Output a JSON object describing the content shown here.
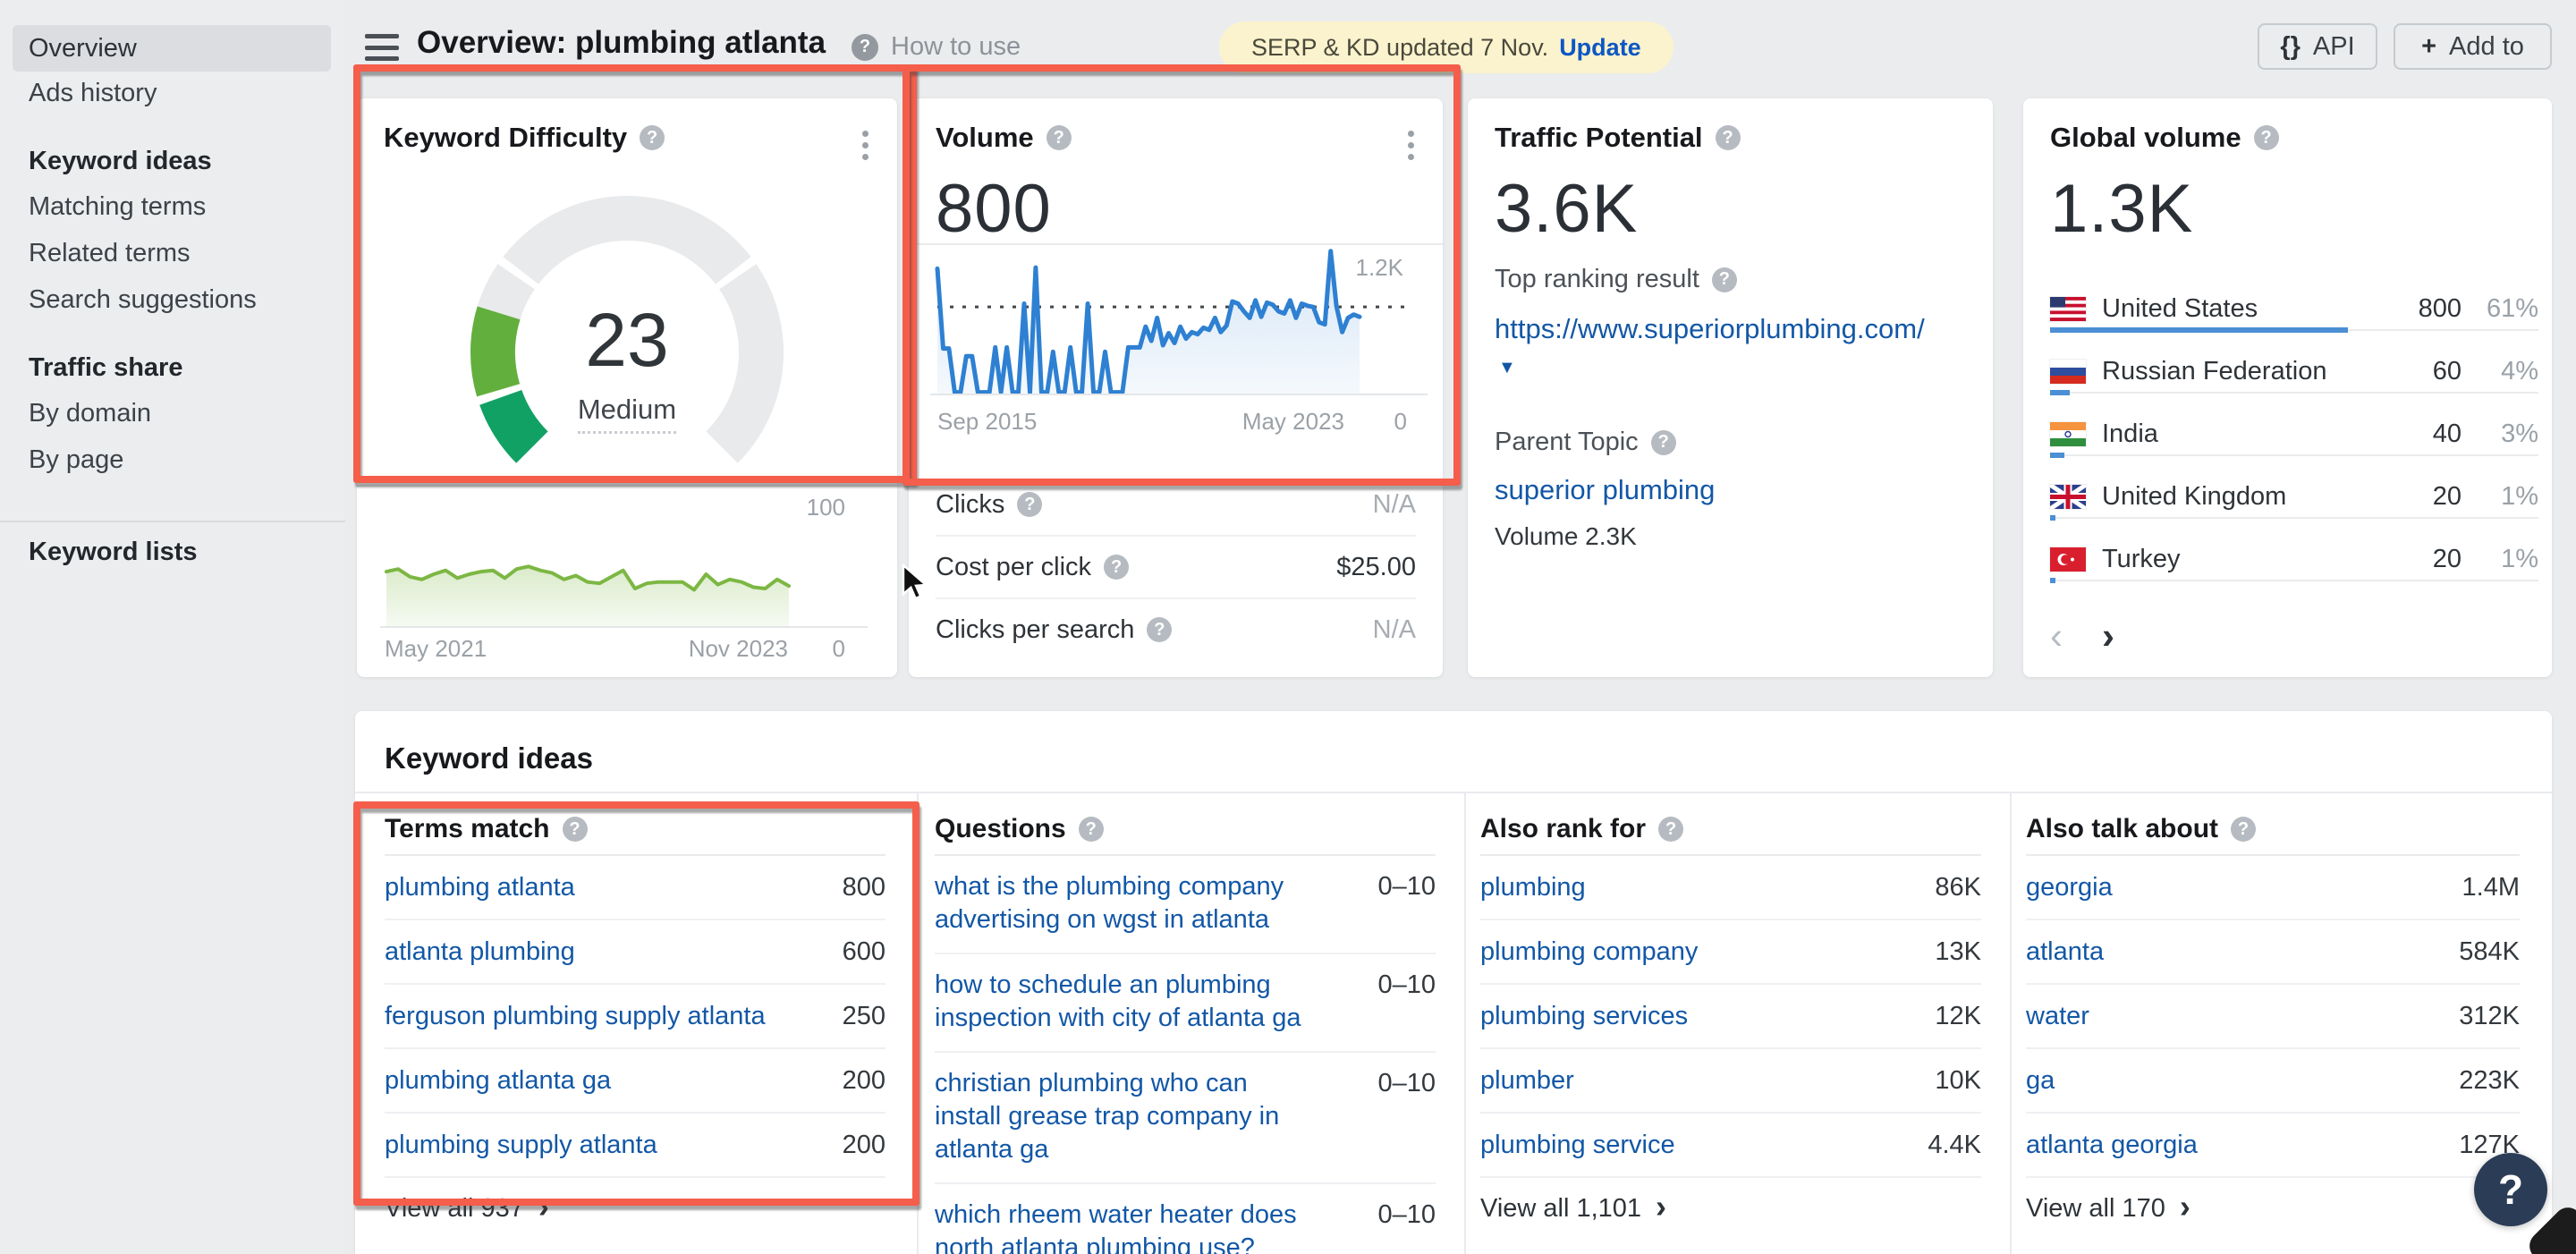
{
  "colors": {
    "accent_red": "#f45e4b",
    "link_blue": "#1257a6",
    "update_blue": "#0d57c4",
    "volume_line": "#2e80d2",
    "kd_trend_line": "#7cb743",
    "gauge_green_low": "#12a164",
    "gauge_green_mid": "#63af3d",
    "gauge_gray": "#e9eaec",
    "bar_blue": "#4b8fd4",
    "pill_yellow": "#fbf3cd",
    "fab_navy": "#2b3c57"
  },
  "icons": {
    "help": "?",
    "braces": "{}",
    "plus": "+",
    "chevron_right": "›",
    "chevron_left": "‹",
    "caret_down": "▼"
  },
  "header": {
    "title": "Overview: plumbing atlanta",
    "how_to_use": "How to use",
    "pill_text": "SERP & KD updated 7 Nov.",
    "pill_link": "Update",
    "api_label": "API",
    "add_to_label": "Add to"
  },
  "sidebar": {
    "items": [
      {
        "label": "Overview",
        "type": "active"
      },
      {
        "label": "Ads history",
        "type": "item"
      },
      {
        "label": "Keyword ideas",
        "type": "header"
      },
      {
        "label": "Matching terms",
        "type": "item"
      },
      {
        "label": "Related terms",
        "type": "item"
      },
      {
        "label": "Search suggestions",
        "type": "item"
      },
      {
        "label": "Traffic share",
        "type": "header"
      },
      {
        "label": "By domain",
        "type": "item"
      },
      {
        "label": "By page",
        "type": "item"
      },
      {
        "type": "divider"
      },
      {
        "label": "Keyword lists",
        "type": "header"
      }
    ]
  },
  "kd_card": {
    "title": "Keyword Difficulty"
  },
  "volume_card": {
    "title": "Volume",
    "value": "800",
    "metrics": [
      {
        "label": "Clicks",
        "value": "N/A",
        "na": true
      },
      {
        "label": "Cost per click",
        "value": "$25.00",
        "na": false
      },
      {
        "label": "Clicks per search",
        "value": "N/A",
        "na": true
      }
    ]
  },
  "tp_card": {
    "title": "Traffic Potential",
    "value": "3.6K",
    "top_label": "Top ranking result",
    "url": "https://www.superiorplumbing.com/",
    "parent_label": "Parent Topic",
    "parent_topic": "superior plumbing",
    "parent_volume": "Volume 2.3K"
  },
  "gv_card": {
    "title": "Global volume",
    "value": "1.3K",
    "countries": [
      {
        "name": "United States",
        "value": "800",
        "pct": "61%",
        "share": 61,
        "flag": "us"
      },
      {
        "name": "Russian Federation",
        "value": "60",
        "pct": "4%",
        "share": 4,
        "flag": "ru"
      },
      {
        "name": "India",
        "value": "40",
        "pct": "3%",
        "share": 3,
        "flag": "in"
      },
      {
        "name": "United Kingdom",
        "value": "20",
        "pct": "1%",
        "share": 1,
        "flag": "gb"
      },
      {
        "name": "Turkey",
        "value": "20",
        "pct": "1%",
        "share": 1,
        "flag": "tr"
      }
    ]
  },
  "keyword_ideas": {
    "title": "Keyword ideas",
    "columns": [
      {
        "title": "Terms match",
        "wrap": false,
        "highlighted": true,
        "items": [
          {
            "text": "plumbing atlanta",
            "value": "800"
          },
          {
            "text": "atlanta plumbing",
            "value": "600"
          },
          {
            "text": "ferguson plumbing supply atlanta",
            "value": "250"
          },
          {
            "text": "plumbing atlanta ga",
            "value": "200"
          },
          {
            "text": "plumbing supply atlanta",
            "value": "200"
          }
        ],
        "view_all": "View all 937"
      },
      {
        "title": "Questions",
        "wrap": true,
        "highlighted": false,
        "items": [
          {
            "text": "what is the plumbing company advertising on wgst in atlanta",
            "value": "0–10"
          },
          {
            "text": "how to schedule an plumbing inspection with city of atlanta ga",
            "value": "0–10"
          },
          {
            "text": "christian plumbing who can install grease trap company in atlanta ga",
            "value": "0–10"
          },
          {
            "text": "which rheem water heater does north atlanta plumbing use?",
            "value": "0–10"
          }
        ],
        "view_all": null
      },
      {
        "title": "Also rank for",
        "wrap": false,
        "highlighted": false,
        "items": [
          {
            "text": "plumbing",
            "value": "86K"
          },
          {
            "text": "plumbing company",
            "value": "13K"
          },
          {
            "text": "plumbing services",
            "value": "12K"
          },
          {
            "text": "plumber",
            "value": "10K"
          },
          {
            "text": "plumbing service",
            "value": "4.4K"
          }
        ],
        "view_all": "View all 1,101"
      },
      {
        "title": "Also talk about",
        "wrap": false,
        "highlighted": false,
        "items": [
          {
            "text": "georgia",
            "value": "1.4M"
          },
          {
            "text": "atlanta",
            "value": "584K"
          },
          {
            "text": "water",
            "value": "312K"
          },
          {
            "text": "ga",
            "value": "223K"
          },
          {
            "text": "atlanta georgia",
            "value": "127K"
          }
        ],
        "view_all": "View all 170"
      }
    ]
  },
  "help_fab": {
    "label": "?"
  },
  "chart_data": [
    {
      "type": "gauge",
      "title": "Keyword Difficulty",
      "value": 23,
      "label": "Medium",
      "min": 0,
      "max": 100,
      "segment_boundaries": [
        10,
        30,
        70
      ],
      "filled_segments": [
        [
          0,
          10
        ],
        [
          10,
          23
        ]
      ]
    },
    {
      "type": "area",
      "title": "Keyword Difficulty trend",
      "x_start": "May 2021",
      "x_end": "Nov 2023",
      "y_max_label": "100",
      "y_min_label": "0",
      "ylim": [
        0,
        100
      ],
      "values": [
        42,
        44,
        38,
        36,
        40,
        43,
        37,
        40,
        42,
        43,
        37,
        44,
        46,
        43,
        41,
        36,
        39,
        34,
        33,
        38,
        43,
        29,
        33,
        34,
        34,
        34,
        28,
        40,
        32,
        36,
        34,
        30,
        29,
        36,
        31
      ]
    },
    {
      "type": "area",
      "title": "Search volume trend",
      "x_start": "Sep 2015",
      "x_end": "May 2023",
      "y_max_label": "1.2K",
      "y_min_label": "0",
      "ylim": [
        0,
        1380
      ],
      "ref_line": 800,
      "values": [
        1150,
        420,
        420,
        20,
        20,
        350,
        350,
        20,
        20,
        20,
        430,
        20,
        430,
        20,
        20,
        830,
        20,
        1160,
        20,
        20,
        390,
        20,
        20,
        430,
        20,
        20,
        830,
        20,
        20,
        390,
        20,
        20,
        20,
        430,
        430,
        430,
        620,
        490,
        700,
        450,
        560,
        470,
        620,
        510,
        570,
        550,
        610,
        590,
        700,
        570,
        630,
        850,
        830,
        760,
        700,
        860,
        710,
        840,
        820,
        760,
        740,
        860,
        700,
        830,
        810,
        800,
        660,
        640,
        1310,
        810,
        570,
        700,
        730,
        710
      ]
    }
  ]
}
